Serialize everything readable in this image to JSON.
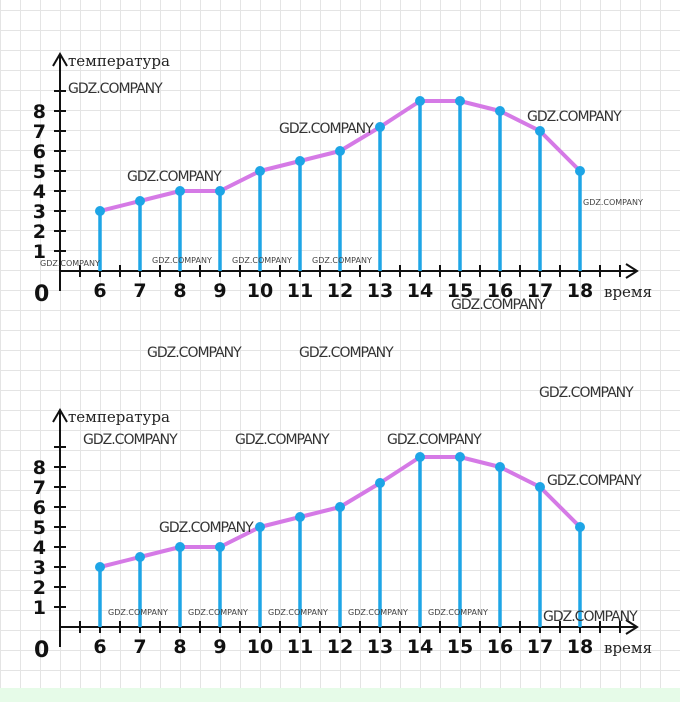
{
  "watermark": "GDZ.COMPANY",
  "colors": {
    "stem": "#1ea5e6",
    "point": "#1ea5e6",
    "line": "#d57ae6",
    "axis": "#111111"
  },
  "chart_data": [
    {
      "type": "line",
      "xlabel": "время",
      "ylabel": "температура",
      "origin_label": "0",
      "x": [
        6,
        7,
        8,
        9,
        10,
        11,
        12,
        13,
        14,
        15,
        16,
        17,
        18
      ],
      "y": [
        3,
        3.5,
        4,
        4,
        5,
        5.5,
        6,
        7.2,
        8.5,
        8.5,
        8,
        7,
        5
      ],
      "x_ticks": [
        "6",
        "7",
        "8",
        "9",
        "10",
        "11",
        "12",
        "13",
        "14",
        "15",
        "16",
        "17",
        "18"
      ],
      "y_ticks": [
        "1",
        "2",
        "3",
        "4",
        "5",
        "6",
        "7",
        "8"
      ],
      "xlim": [
        5,
        19.3
      ],
      "ylim": [
        0,
        10
      ],
      "vertical_stems": true,
      "grid": true
    },
    {
      "type": "line",
      "xlabel": "время",
      "ylabel": "температура",
      "origin_label": "0",
      "x": [
        6,
        7,
        8,
        9,
        10,
        11,
        12,
        13,
        14,
        15,
        16,
        17,
        18
      ],
      "y": [
        3,
        3.5,
        4,
        4,
        5,
        5.5,
        6,
        7.2,
        8.5,
        8.5,
        8,
        7,
        5
      ],
      "x_ticks": [
        "6",
        "7",
        "8",
        "9",
        "10",
        "11",
        "12",
        "13",
        "14",
        "15",
        "16",
        "17",
        "18"
      ],
      "y_ticks": [
        "1",
        "2",
        "3",
        "4",
        "5",
        "6",
        "7",
        "8"
      ],
      "xlim": [
        5,
        19.3
      ],
      "ylim": [
        0,
        10
      ],
      "vertical_stems": true,
      "grid": true
    }
  ]
}
